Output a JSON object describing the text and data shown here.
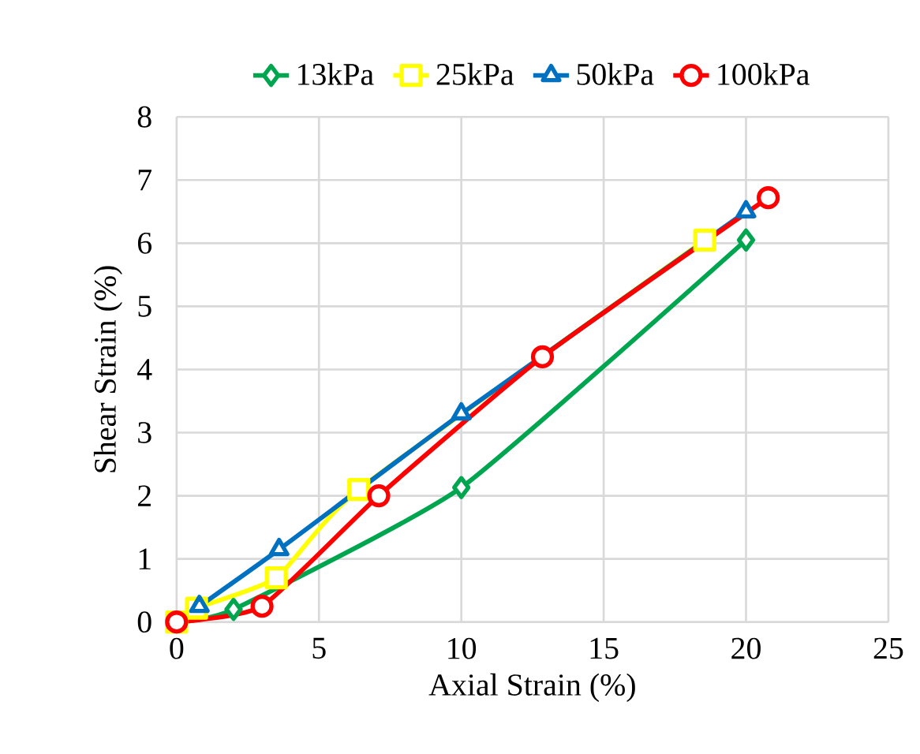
{
  "chart_data": {
    "type": "line",
    "xlabel": "Axial Strain (%)",
    "ylabel": "Shear Strain (%)",
    "xlim": [
      0,
      25
    ],
    "xticks": [
      0,
      5,
      10,
      15,
      20,
      25
    ],
    "ylim": [
      0,
      8
    ],
    "yticks": [
      0,
      1,
      2,
      3,
      4,
      5,
      6,
      7,
      8
    ],
    "grid": true,
    "legend": "top",
    "line_style": "solid",
    "series": [
      {
        "name": "13kPa",
        "color": "#00a64f",
        "marker": "diamond",
        "x": [
          0,
          2,
          10,
          20
        ],
        "values": [
          0,
          0.2,
          2.13,
          6.05
        ]
      },
      {
        "name": "25kPa",
        "color": "#ffff00",
        "marker": "square",
        "x": [
          0,
          0.7,
          3.5,
          6.4,
          18.55
        ],
        "values": [
          0,
          0.22,
          0.7,
          2.1,
          6.05
        ]
      },
      {
        "name": "50kPa",
        "color": "#0070c0",
        "marker": "triangle",
        "x": [
          0,
          0.8,
          3.6,
          10,
          20
        ],
        "values": [
          0,
          0.25,
          1.15,
          3.3,
          6.5
        ]
      },
      {
        "name": "100kPa",
        "color": "#ff0000",
        "marker": "circle",
        "x": [
          0,
          3,
          7.1,
          12.85,
          20.78
        ],
        "values": [
          0,
          0.25,
          2.0,
          4.2,
          6.72
        ]
      }
    ]
  }
}
